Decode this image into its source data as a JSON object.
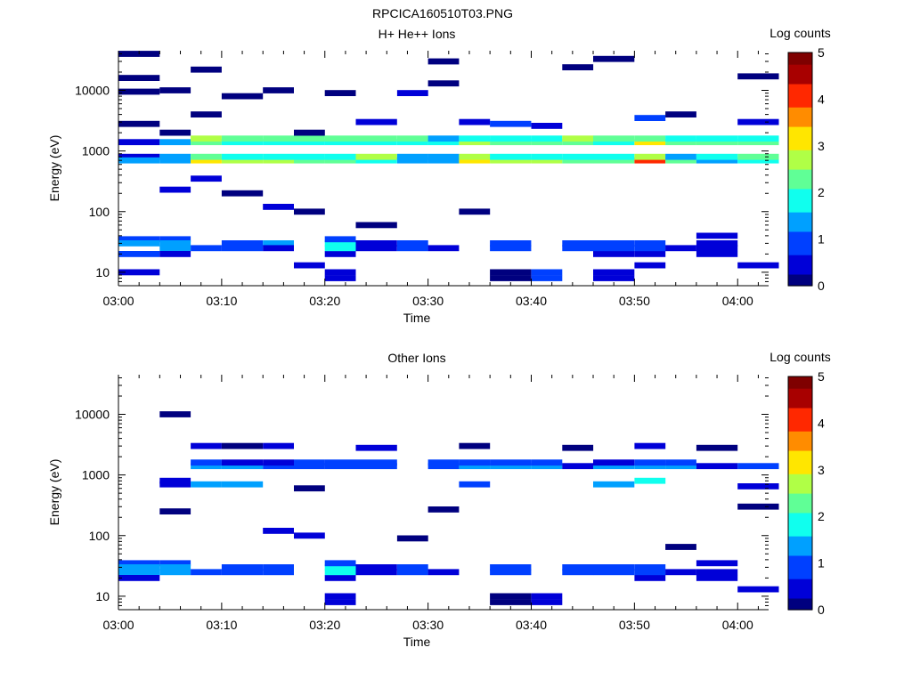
{
  "figure_title": "RPCICA160510T03.PNG",
  "colors": {
    "colormap": [
      "#00007f",
      "#0000d8",
      "#0040ff",
      "#00a0ff",
      "#10ffee",
      "#60ff96",
      "#b0ff46",
      "#ffe600",
      "#ff8c00",
      "#ff2800",
      "#a80000",
      "#7f0000"
    ]
  },
  "chart_data": [
    {
      "type": "heatmap",
      "title": "H+ He++ Ions",
      "xlabel": "Time",
      "ylabel": "Energy (eV)",
      "colorbar_label": "Log counts",
      "colorbar_ticks": [
        "0",
        "1",
        "2",
        "3",
        "4",
        "5"
      ],
      "clim": [
        0,
        5
      ],
      "x_ticks": [
        "03:00",
        "03:10",
        "03:20",
        "03:30",
        "03:40",
        "03:50",
        "04:00"
      ],
      "xlim": [
        "03:00",
        "04:03"
      ],
      "y_scale": "log",
      "ylim": [
        6,
        45000
      ],
      "y_ticks": [
        "10",
        "100",
        "1000",
        "10000"
      ],
      "time_bins": [
        "03:00",
        "03:04",
        "03:07",
        "03:10",
        "03:14",
        "03:17",
        "03:20",
        "03:23",
        "03:27",
        "03:30",
        "03:33",
        "03:36",
        "03:40",
        "03:43",
        "03:46",
        "03:50",
        "03:53",
        "03:56",
        "04:00"
      ],
      "cells": [
        [
          0,
          10,
          0.4
        ],
        [
          0,
          800,
          0.6
        ],
        [
          0,
          700,
          1.3
        ],
        [
          0,
          35,
          1.0
        ],
        [
          0,
          30,
          1.2
        ],
        [
          0,
          20,
          0.7
        ],
        [
          0,
          1400,
          0.3
        ],
        [
          0,
          2800,
          0.2
        ],
        [
          0,
          9500,
          0.2
        ],
        [
          0,
          16000,
          0.2
        ],
        [
          0,
          40000,
          0.2
        ],
        [
          1,
          35,
          1.0
        ],
        [
          1,
          30,
          1.3
        ],
        [
          1,
          25,
          1.2
        ],
        [
          1,
          20,
          0.6
        ],
        [
          1,
          230,
          0.4
        ],
        [
          1,
          700,
          1.3
        ],
        [
          1,
          800,
          1.5
        ],
        [
          1,
          1400,
          1.4
        ],
        [
          1,
          2000,
          0.2
        ],
        [
          1,
          10000,
          0.2
        ],
        [
          2,
          25,
          1.0
        ],
        [
          2,
          350,
          0.3
        ],
        [
          2,
          700,
          3.3
        ],
        [
          2,
          800,
          2.2
        ],
        [
          2,
          1400,
          2.4
        ],
        [
          2,
          1600,
          2.8
        ],
        [
          2,
          4000,
          0.2
        ],
        [
          2,
          22000,
          0.2
        ],
        [
          3,
          30,
          1.0
        ],
        [
          3,
          25,
          1.0
        ],
        [
          3,
          700,
          2.6
        ],
        [
          3,
          800,
          2.0
        ],
        [
          3,
          1400,
          2.0
        ],
        [
          3,
          1600,
          2.4
        ],
        [
          3,
          200,
          0.2
        ],
        [
          3,
          8000,
          0.2
        ],
        [
          4,
          30,
          1.2
        ],
        [
          4,
          25,
          0.5
        ],
        [
          4,
          700,
          2.5
        ],
        [
          4,
          800,
          1.8
        ],
        [
          4,
          1400,
          1.7
        ],
        [
          4,
          1600,
          2.1
        ],
        [
          4,
          120,
          0.3
        ],
        [
          4,
          10000,
          0.2
        ],
        [
          5,
          13,
          0.5
        ],
        [
          5,
          700,
          2.4
        ],
        [
          5,
          800,
          1.7
        ],
        [
          5,
          1400,
          1.7
        ],
        [
          5,
          1600,
          2.1
        ],
        [
          5,
          2000,
          0.2
        ],
        [
          5,
          100,
          0.2
        ],
        [
          6,
          8,
          0.3
        ],
        [
          6,
          10,
          0.3
        ],
        [
          6,
          20,
          0.5
        ],
        [
          6,
          25,
          2.0
        ],
        [
          6,
          30,
          1.6
        ],
        [
          6,
          35,
          0.8
        ],
        [
          6,
          700,
          2.3
        ],
        [
          6,
          800,
          1.8
        ],
        [
          6,
          1400,
          1.8
        ],
        [
          6,
          1600,
          2.2
        ],
        [
          6,
          9000,
          0.2
        ],
        [
          7,
          25,
          0.6
        ],
        [
          7,
          30,
          0.6
        ],
        [
          7,
          700,
          2.0
        ],
        [
          7,
          800,
          2.5
        ],
        [
          7,
          1400,
          1.9
        ],
        [
          7,
          1600,
          2.1
        ],
        [
          7,
          3000,
          0.3
        ],
        [
          7,
          60,
          0.2
        ],
        [
          8,
          25,
          0.8
        ],
        [
          8,
          30,
          0.8
        ],
        [
          8,
          700,
          1.2
        ],
        [
          8,
          800,
          1.3
        ],
        [
          8,
          1400,
          1.8
        ],
        [
          8,
          1600,
          2.1
        ],
        [
          8,
          9000,
          0.3
        ],
        [
          9,
          25,
          0.5
        ],
        [
          9,
          700,
          1.3
        ],
        [
          9,
          800,
          1.5
        ],
        [
          9,
          1400,
          1.6
        ],
        [
          9,
          1600,
          1.4
        ],
        [
          9,
          13000,
          0.2
        ],
        [
          9,
          30000,
          0.2
        ],
        [
          10,
          700,
          3.2
        ],
        [
          10,
          800,
          2.6
        ],
        [
          10,
          1400,
          2.9
        ],
        [
          10,
          1600,
          2.0
        ],
        [
          10,
          3000,
          0.3
        ],
        [
          10,
          100,
          0.2
        ],
        [
          11,
          8,
          0.2
        ],
        [
          11,
          10,
          0.2
        ],
        [
          11,
          25,
          1.0
        ],
        [
          11,
          30,
          1.0
        ],
        [
          11,
          700,
          2.5
        ],
        [
          11,
          800,
          2.0
        ],
        [
          11,
          1400,
          2.4
        ],
        [
          11,
          1600,
          1.9
        ],
        [
          11,
          2800,
          1.0
        ],
        [
          12,
          8,
          0.8
        ],
        [
          12,
          10,
          0.8
        ],
        [
          12,
          700,
          2.5
        ],
        [
          12,
          800,
          2.0
        ],
        [
          12,
          1400,
          2.3
        ],
        [
          12,
          1600,
          1.8
        ],
        [
          12,
          2600,
          0.3
        ],
        [
          13,
          25,
          1.0
        ],
        [
          13,
          30,
          1.0
        ],
        [
          13,
          700,
          2.4
        ],
        [
          13,
          800,
          2.0
        ],
        [
          13,
          1400,
          2.1
        ],
        [
          13,
          1600,
          2.5
        ],
        [
          13,
          24000,
          0.2
        ],
        [
          14,
          8,
          0.4
        ],
        [
          14,
          10,
          0.4
        ],
        [
          14,
          20,
          0.6
        ],
        [
          14,
          25,
          1.0
        ],
        [
          14,
          30,
          1.0
        ],
        [
          14,
          700,
          2.4
        ],
        [
          14,
          800,
          1.9
        ],
        [
          14,
          1400,
          2.0
        ],
        [
          14,
          1600,
          2.2
        ],
        [
          14,
          33000,
          0.2
        ],
        [
          15,
          13,
          0.6
        ],
        [
          15,
          20,
          0.5
        ],
        [
          15,
          25,
          0.7
        ],
        [
          15,
          30,
          0.7
        ],
        [
          15,
          700,
          3.9
        ],
        [
          15,
          800,
          2.8
        ],
        [
          15,
          1400,
          3.0
        ],
        [
          15,
          1600,
          2.4
        ],
        [
          15,
          3500,
          1.0
        ],
        [
          16,
          25,
          0.6
        ],
        [
          16,
          700,
          2.4
        ],
        [
          16,
          800,
          1.3
        ],
        [
          16,
          1400,
          2.3
        ],
        [
          16,
          1600,
          1.6
        ],
        [
          16,
          4000,
          0.2
        ],
        [
          17,
          20,
          0.3
        ],
        [
          17,
          25,
          0.3
        ],
        [
          17,
          30,
          0.3
        ],
        [
          17,
          40,
          0.3
        ],
        [
          17,
          700,
          1.3
        ],
        [
          17,
          800,
          2.0
        ],
        [
          17,
          1400,
          2.2
        ],
        [
          17,
          1600,
          1.6
        ],
        [
          18,
          13,
          0.4
        ],
        [
          18,
          700,
          1.6
        ],
        [
          18,
          800,
          2.4
        ],
        [
          18,
          1400,
          2.1
        ],
        [
          18,
          1600,
          1.6
        ],
        [
          18,
          3000,
          0.3
        ],
        [
          18,
          17000,
          0.2
        ]
      ]
    },
    {
      "type": "heatmap",
      "title": "Other Ions",
      "xlabel": "Time",
      "ylabel": "Energy (eV)",
      "colorbar_label": "Log counts",
      "colorbar_ticks": [
        "0",
        "1",
        "2",
        "3",
        "4",
        "5"
      ],
      "clim": [
        0,
        5
      ],
      "x_ticks": [
        "03:00",
        "03:10",
        "03:20",
        "03:30",
        "03:40",
        "03:50",
        "04:00"
      ],
      "xlim": [
        "03:00",
        "04:03"
      ],
      "y_scale": "log",
      "ylim": [
        6,
        45000
      ],
      "y_ticks": [
        "10",
        "100",
        "1000",
        "10000"
      ],
      "time_bins": [
        "03:00",
        "03:04",
        "03:07",
        "03:10",
        "03:14",
        "03:17",
        "03:20",
        "03:23",
        "03:27",
        "03:30",
        "03:33",
        "03:36",
        "03:40",
        "03:43",
        "03:46",
        "03:50",
        "03:53",
        "03:56",
        "04:00"
      ],
      "cells": [
        [
          0,
          35,
          1.0
        ],
        [
          0,
          30,
          1.2
        ],
        [
          0,
          25,
          1.2
        ],
        [
          0,
          20,
          0.6
        ],
        [
          1,
          35,
          1.0
        ],
        [
          1,
          30,
          1.3
        ],
        [
          1,
          25,
          1.2
        ],
        [
          1,
          700,
          0.4
        ],
        [
          1,
          800,
          0.3
        ],
        [
          1,
          250,
          0.2
        ],
        [
          1,
          10000,
          0.2
        ],
        [
          2,
          25,
          1.0
        ],
        [
          2,
          700,
          1.5
        ],
        [
          2,
          1400,
          1.3
        ],
        [
          2,
          1600,
          0.8
        ],
        [
          2,
          3000,
          0.3
        ],
        [
          3,
          25,
          1.0
        ],
        [
          3,
          30,
          1.0
        ],
        [
          3,
          700,
          1.2
        ],
        [
          3,
          1400,
          1.2
        ],
        [
          3,
          1600,
          0.6
        ],
        [
          3,
          3000,
          0.2
        ],
        [
          4,
          25,
          1.0
        ],
        [
          4,
          30,
          1.0
        ],
        [
          4,
          1400,
          1.0
        ],
        [
          4,
          1600,
          0.5
        ],
        [
          4,
          120,
          0.3
        ],
        [
          4,
          3000,
          0.3
        ],
        [
          5,
          100,
          0.3
        ],
        [
          5,
          1400,
          0.8
        ],
        [
          5,
          1600,
          0.7
        ],
        [
          5,
          600,
          0.2
        ],
        [
          6,
          8,
          0.3
        ],
        [
          6,
          10,
          0.3
        ],
        [
          6,
          20,
          0.5
        ],
        [
          6,
          25,
          2.0
        ],
        [
          6,
          30,
          1.8
        ],
        [
          6,
          35,
          0.8
        ],
        [
          6,
          1400,
          1.1
        ],
        [
          6,
          1600,
          0.8
        ],
        [
          7,
          25,
          0.6
        ],
        [
          7,
          30,
          0.6
        ],
        [
          7,
          1400,
          1.0
        ],
        [
          7,
          1600,
          0.8
        ],
        [
          7,
          2800,
          0.3
        ],
        [
          8,
          25,
          0.8
        ],
        [
          8,
          30,
          0.8
        ],
        [
          8,
          90,
          0.2
        ],
        [
          9,
          25,
          0.5
        ],
        [
          9,
          1400,
          0.8
        ],
        [
          9,
          1600,
          0.8
        ],
        [
          9,
          270,
          0.2
        ],
        [
          10,
          700,
          1.1
        ],
        [
          10,
          1400,
          1.4
        ],
        [
          10,
          1600,
          0.8
        ],
        [
          10,
          3000,
          0.2
        ],
        [
          11,
          8,
          0.2
        ],
        [
          11,
          10,
          0.2
        ],
        [
          11,
          25,
          1.0
        ],
        [
          11,
          30,
          1.0
        ],
        [
          11,
          1400,
          1.3
        ],
        [
          11,
          1600,
          1.0
        ],
        [
          12,
          8,
          0.6
        ],
        [
          12,
          10,
          0.6
        ],
        [
          12,
          1400,
          1.2
        ],
        [
          12,
          1600,
          0.8
        ],
        [
          13,
          25,
          1.0
        ],
        [
          13,
          30,
          1.0
        ],
        [
          13,
          1400,
          0.6
        ],
        [
          13,
          2800,
          0.2
        ],
        [
          14,
          25,
          1.0
        ],
        [
          14,
          30,
          1.0
        ],
        [
          14,
          700,
          1.2
        ],
        [
          14,
          1400,
          1.3
        ],
        [
          14,
          1600,
          0.6
        ],
        [
          15,
          20,
          0.5
        ],
        [
          15,
          25,
          0.7
        ],
        [
          15,
          30,
          0.7
        ],
        [
          15,
          800,
          1.6
        ],
        [
          15,
          1400,
          1.5
        ],
        [
          15,
          1600,
          0.9
        ],
        [
          15,
          3000,
          0.3
        ],
        [
          16,
          25,
          0.6
        ],
        [
          16,
          1400,
          1.2
        ],
        [
          16,
          1600,
          0.8
        ],
        [
          16,
          65,
          0.2
        ],
        [
          17,
          20,
          0.3
        ],
        [
          17,
          25,
          0.3
        ],
        [
          17,
          35,
          0.3
        ],
        [
          17,
          1400,
          0.6
        ],
        [
          17,
          2800,
          0.2
        ],
        [
          18,
          13,
          0.4
        ],
        [
          18,
          650,
          0.4
        ],
        [
          18,
          1400,
          0.8
        ],
        [
          18,
          300,
          0.2
        ]
      ]
    }
  ]
}
